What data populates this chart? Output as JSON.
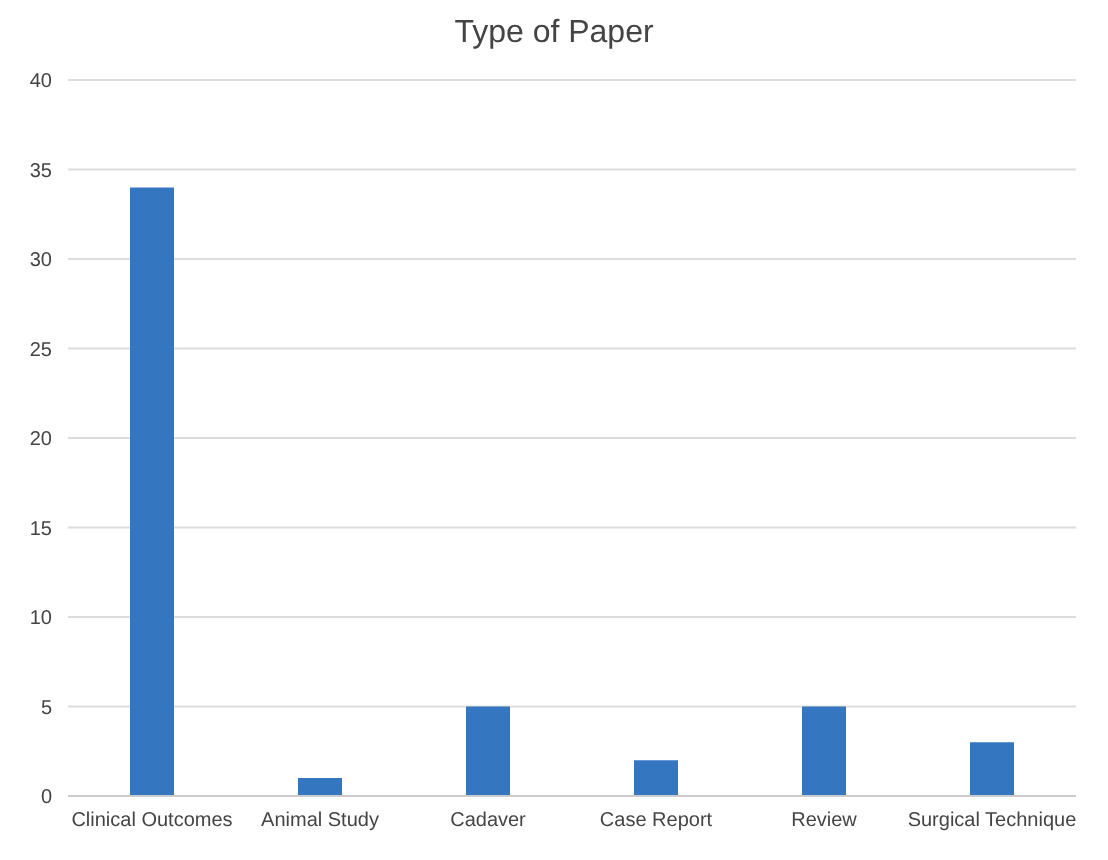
{
  "chart_data": {
    "type": "bar",
    "title": "Type of Paper",
    "categories": [
      "Clinical Outcomes",
      "Animal Study",
      "Cadaver",
      "Case Report",
      "Review",
      "Surgical Technique"
    ],
    "values": [
      34,
      1,
      5,
      2,
      5,
      3
    ],
    "color": "#3477c0",
    "ylim": [
      0,
      40
    ],
    "yticks": [
      0,
      5,
      10,
      15,
      20,
      25,
      30,
      35,
      40
    ],
    "grid": "y"
  }
}
